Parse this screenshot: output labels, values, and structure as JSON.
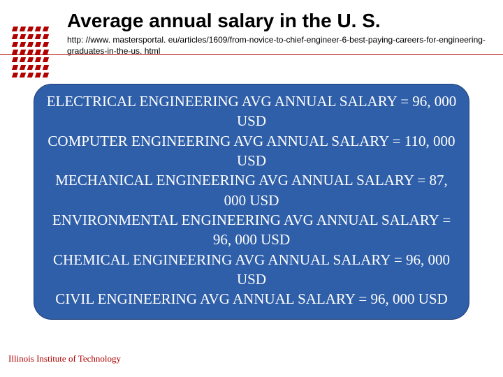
{
  "header": {
    "title": "Average annual salary in the U. S.",
    "url": "http: //www. mastersportal. eu/articles/1609/from-novice-to-chief-engineer-6-best-paying-careers-for-engineering-graduates-in-the-us. html"
  },
  "logo": {
    "dot_color": "#b00000",
    "rows": 7,
    "cols": 5
  },
  "salary_box": {
    "background_color": "#2f5fa8",
    "border_color": "#1f3f78",
    "text_color": "#ffffff",
    "border_radius": 26,
    "fontsize": 21,
    "lines": [
      "ELECTRICAL ENGINEERING  AVG ANNUAL SALARY = 96, 000 USD",
      "COMPUTER ENGINEERING  AVG  ANNUAL SALARY = 110, 000 USD",
      "MECHANICAL ENGINEERING AVG ANNUAL SALARY = 87, 000 USD",
      "ENVIRONMENTAL ENGINEERING AVG ANNUAL SALARY = 96, 000 USD",
      "CHEMICAL ENGINEERING AVG ANNUAL SALARY = 96, 000 USD",
      "CIVIL ENGINEERING AVG ANNUAL SALARY = 96, 000 USD"
    ]
  },
  "footer": {
    "text": "Illinois Institute of Technology",
    "color": "#b00000"
  },
  "divider_color": "#b00000"
}
